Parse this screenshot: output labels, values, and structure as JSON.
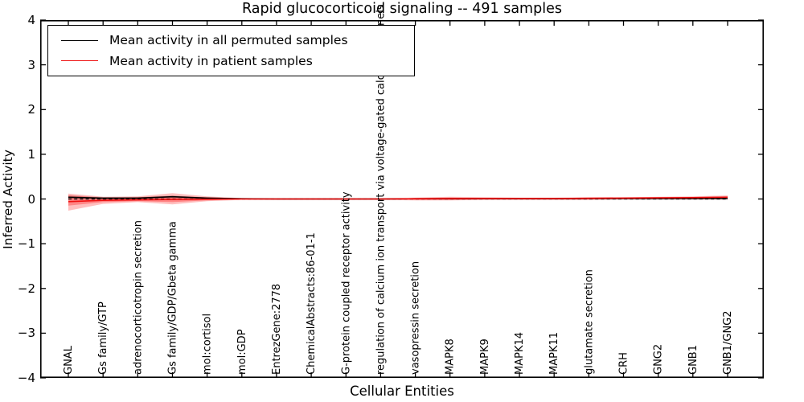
{
  "chart_data": {
    "type": "line",
    "title": "Rapid glucocorticoid signaling -- 491 samples",
    "xlabel": "Cellular Entities",
    "ylabel": "Inferred Activity",
    "ylim": [
      -4,
      4
    ],
    "grid": false,
    "legend_position": "upper left",
    "yticks": [
      {
        "label": "4",
        "value": 4
      },
      {
        "label": "3",
        "value": 3
      },
      {
        "label": "2",
        "value": 2
      },
      {
        "label": "1",
        "value": 1
      },
      {
        "label": "0",
        "value": 0
      },
      {
        "label": "−1",
        "value": -1
      },
      {
        "label": "−2",
        "value": -2
      },
      {
        "label": "−3",
        "value": -3
      },
      {
        "label": "−4",
        "value": -4
      }
    ],
    "categories": [
      "GNAL",
      "Gs family/GTP",
      "adrenocorticotropin secretion",
      "Gs family/GDP/Gbeta gamma",
      "mol:cortisol",
      "mol:GDP",
      "EntrezGene:2778",
      "ChemicalAbstracts:86-01-1",
      "G-protein coupled receptor activity",
      "regulation of calcium ion transport via voltage-gated calcium channels",
      "vasopressin secretion",
      "MAPK8",
      "MAPK9",
      "MAPK14",
      "MAPK11",
      "glutamate secretion",
      "CRH",
      "GNG2",
      "GNB1",
      "GNB1/GNG2"
    ],
    "zero_line": {
      "value": 0,
      "style": "dashed",
      "color": "#000000"
    },
    "series": [
      {
        "name": "Mean activity in all permuted samples",
        "color": "#000000",
        "values": [
          0.04,
          0.02,
          0.02,
          0.05,
          0.02,
          0.005,
          0,
          0,
          0,
          0,
          0.005,
          0.005,
          0.005,
          0.005,
          0.005,
          0.01,
          0.01,
          0.01,
          0.01,
          0.015
        ]
      },
      {
        "name": "Mean activity in patient samples",
        "color": "#ee1111",
        "values": [
          -0.06,
          -0.03,
          -0.02,
          -0.01,
          -0.005,
          0,
          0,
          0,
          0,
          0,
          0.005,
          0.01,
          0.01,
          0.01,
          0.01,
          0.015,
          0.02,
          0.025,
          0.03,
          0.04
        ]
      }
    ],
    "bands": [
      {
        "name": "permuted-samples-band",
        "color": "#999999",
        "opacity": 0.3,
        "high": [
          0.09,
          0.04,
          0.04,
          0.08,
          0.03,
          0.015,
          0.01,
          0.01,
          0.01,
          0.01,
          0.015,
          0.02,
          0.015,
          0.015,
          0.015,
          0.02,
          0.02,
          0.025,
          0.03,
          0.05
        ],
        "low": [
          -0.01,
          -0.02,
          -0.01,
          0,
          -0.01,
          -0.005,
          -0.01,
          -0.01,
          -0.01,
          -0.01,
          -0.015,
          -0.01,
          -0.005,
          -0.005,
          -0.005,
          0,
          0,
          0,
          0,
          -0.02
        ]
      },
      {
        "name": "patient-band-outer",
        "color": "#ff0000",
        "opacity": 0.25,
        "high": [
          0.12,
          0.05,
          0.06,
          0.13,
          0.06,
          0.02,
          0.02,
          0.02,
          0.02,
          0.02,
          0.03,
          0.05,
          0.04,
          0.03,
          0.03,
          0.04,
          0.04,
          0.05,
          0.06,
          0.08
        ],
        "low": [
          -0.26,
          -0.11,
          -0.07,
          -0.12,
          -0.05,
          -0.02,
          -0.02,
          -0.02,
          -0.02,
          -0.02,
          -0.03,
          -0.03,
          -0.02,
          -0.02,
          -0.02,
          -0.02,
          -0.01,
          -0.01,
          -0.01,
          -0.01
        ]
      },
      {
        "name": "patient-band-inner",
        "color": "#ff0000",
        "opacity": 0.3,
        "high": [
          0.08,
          0.03,
          0.04,
          0.07,
          0.04,
          0.01,
          0.01,
          0.01,
          0.01,
          0.01,
          0.02,
          0.03,
          0.02,
          0.02,
          0.02,
          0.03,
          0.03,
          0.035,
          0.04,
          0.06
        ],
        "low": [
          -0.15,
          -0.07,
          -0.05,
          -0.07,
          -0.03,
          -0.01,
          -0.01,
          -0.01,
          -0.01,
          -0.01,
          -0.02,
          -0.02,
          -0.01,
          -0.01,
          -0.01,
          -0.01,
          0,
          0,
          0.005,
          0.01
        ]
      }
    ]
  }
}
